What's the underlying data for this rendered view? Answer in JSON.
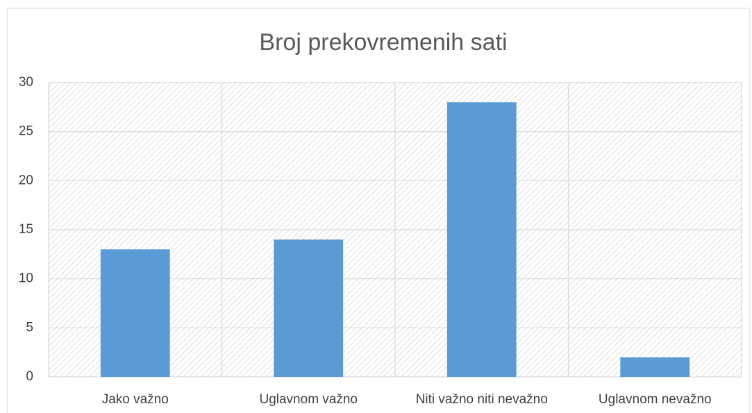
{
  "chart_data": {
    "type": "bar",
    "title": "Broj prekovremenih sati",
    "categories": [
      "Jako važno",
      "Uglavnom važno",
      "Niti važno niti nevažno",
      "Uglavnom nevažno"
    ],
    "values": [
      13,
      14,
      28,
      2
    ],
    "color": "#5b9bd5",
    "ylim": [
      0,
      30
    ],
    "yticks": [
      0,
      5,
      10,
      15,
      20,
      25,
      30
    ],
    "grid": true
  }
}
